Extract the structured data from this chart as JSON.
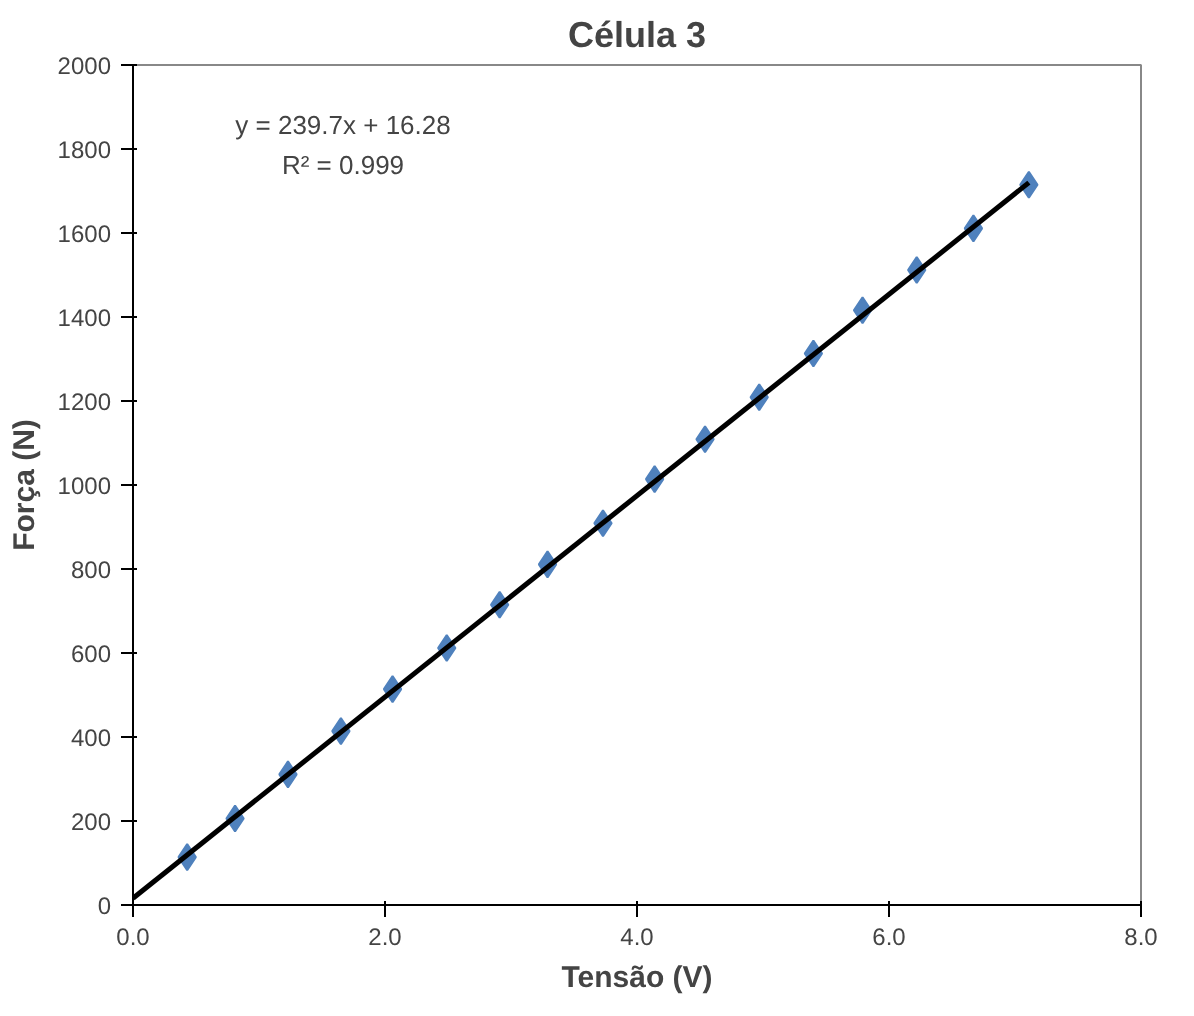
{
  "chart_data": {
    "type": "scatter",
    "title": "Célula 3",
    "xlabel": "Tensão (V)",
    "ylabel": "Força (N)",
    "x": [
      0.43,
      0.81,
      1.23,
      1.65,
      2.06,
      2.49,
      2.91,
      3.29,
      3.73,
      4.14,
      4.54,
      4.97,
      5.4,
      5.79,
      6.22,
      6.67,
      7.11
    ],
    "series": [
      {
        "color": "#4f81bd",
        "marker": "diamond",
        "values": [
          114,
          206,
          311,
          414,
          514,
          612,
          715,
          811,
          909,
          1014,
          1109,
          1209,
          1313,
          1416,
          1512,
          1611,
          1715
        ]
      },
      {
        "type": "line",
        "color": "#000000",
        "line_style": "solid",
        "x": [
          0,
          7.11
        ],
        "values": [
          16,
          1720
        ]
      }
    ],
    "annotations": [
      "y = 239.7x + 16.28",
      "R² = 0.999"
    ],
    "xlim": [
      0,
      8
    ],
    "xticks": [
      {
        "value": 0,
        "label": "0.0"
      },
      {
        "value": 2,
        "label": "2.0"
      },
      {
        "value": 4,
        "label": "4.0"
      },
      {
        "value": 6,
        "label": "6.0"
      },
      {
        "value": 8,
        "label": "8.0"
      }
    ],
    "ylim": [
      0,
      2000
    ],
    "yticks": [
      0,
      200,
      400,
      600,
      800,
      1000,
      1200,
      1400,
      1600,
      1800,
      2000
    ],
    "grid": false
  }
}
